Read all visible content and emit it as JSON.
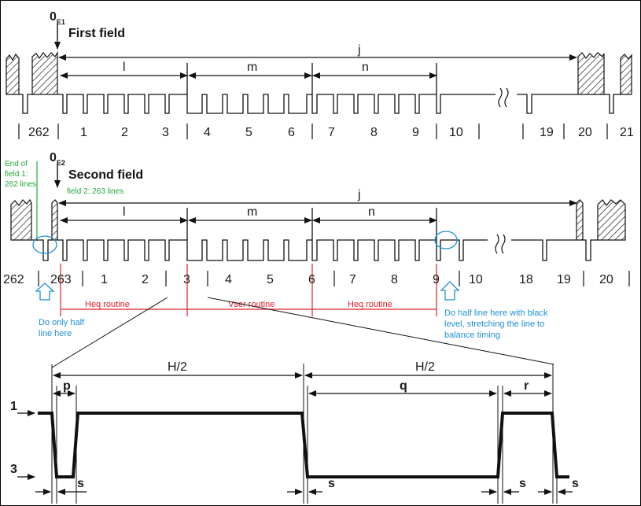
{
  "field1": {
    "origin_main": "0",
    "origin_sub": "E1",
    "title": "First field",
    "interval_labels": [
      "j",
      "l",
      "m",
      "n"
    ],
    "line_numbers": [
      "262",
      "1",
      "2",
      "3",
      "4",
      "5",
      "6",
      "7",
      "8",
      "9",
      "10",
      "19",
      "20",
      "21"
    ]
  },
  "field2": {
    "origin_main": "0",
    "origin_sub": "E2",
    "title": "Second field",
    "end_note_lines": [
      "End of",
      "field 1:",
      "262 lines"
    ],
    "field2_note": "field 2: 263 lines",
    "interval_labels": [
      "j",
      "l",
      "m",
      "n"
    ],
    "line_numbers": [
      "262",
      "263",
      "1",
      "2",
      "3",
      "4",
      "5",
      "6",
      "7",
      "8",
      "9",
      "10",
      "18",
      "19",
      "20"
    ],
    "routines": [
      "Heq routine",
      "Vser routine",
      "Heq routine"
    ],
    "left_note_lines": [
      "Do only half",
      "line here"
    ],
    "right_note_lines": [
      "Do half line here with black",
      "level, stretching the line to",
      "balance timing"
    ]
  },
  "detail": {
    "levels": [
      "1",
      "3"
    ],
    "half_labels": [
      "H/2",
      "H/2"
    ],
    "param_labels": [
      "p",
      "q",
      "r"
    ],
    "s_labels": [
      "s",
      "s",
      "s",
      "s"
    ]
  },
  "colors": {
    "annotation_green": "#22a83a",
    "annotation_red": "#e0202a",
    "annotation_blue": "#1e8fd8",
    "line": "#1a1a1a"
  }
}
